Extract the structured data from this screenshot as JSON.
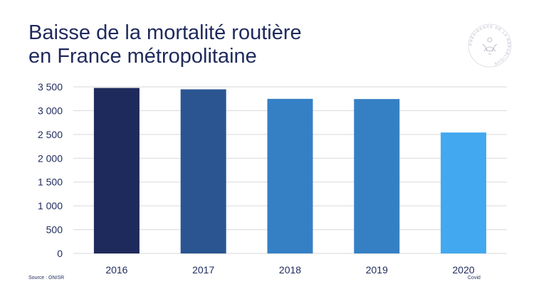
{
  "title_lines": [
    "Baisse de la mortalité routière",
    "en France métropolitaine"
  ],
  "logo_text": "PRÉSIDENCE DE LA RÉPUBLIQUE",
  "source": "Source : ONISR",
  "note_2020": "Covid",
  "colors": {
    "title": "#1f2a5c",
    "grid": "#d9d9d9",
    "bars": [
      "#1f2a5c",
      "#2a5591",
      "#3580c4",
      "#3580c4",
      "#42a8ef"
    ]
  },
  "chart_data": {
    "type": "bar",
    "categories": [
      "2016",
      "2017",
      "2018",
      "2019",
      "2020"
    ],
    "values": [
      3477,
      3448,
      3248,
      3244,
      2541
    ],
    "ylim": [
      0,
      3500
    ],
    "yticks": [
      0,
      500,
      1000,
      1500,
      2000,
      2500,
      3000,
      3500
    ],
    "ytick_labels": [
      "0",
      "500",
      "1 000",
      "1 500",
      "2 000",
      "2 500",
      "3 000",
      "3 500"
    ],
    "grid": true,
    "legend": "none"
  }
}
